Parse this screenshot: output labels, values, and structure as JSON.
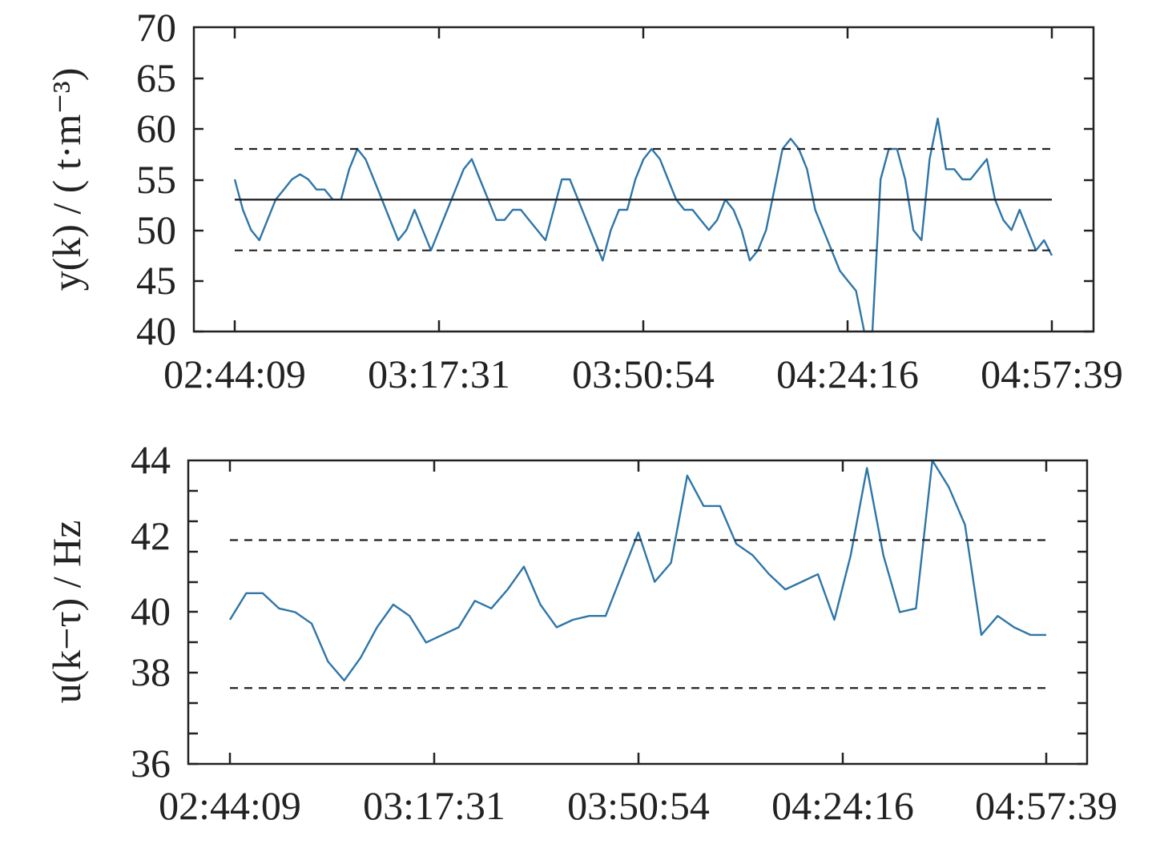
{
  "colors": {
    "series": "#2e75a8",
    "axis": "#222222"
  },
  "chart_data": [
    {
      "type": "line",
      "title": "",
      "xlabel": "",
      "ylabel": "y(k) / ( t·m⁻³)",
      "ylim": [
        40,
        70
      ],
      "y_ticks": [
        "40",
        "45",
        "50",
        "55",
        "60",
        "65",
        "70"
      ],
      "x_ticks": [
        "02:44:09",
        "03:17:31",
        "03:50:54",
        "04:24:16",
        "04:57:39"
      ],
      "xlim": [
        "02:44:09",
        "04:57:39"
      ],
      "grid": false,
      "reference_lines": [
        {
          "style": "solid",
          "y": 53
        },
        {
          "style": "dashed",
          "y": 58
        },
        {
          "style": "dashed",
          "y": 48
        }
      ],
      "series": [
        {
          "x": [
            "02:44:09",
            "02:45:29",
            "02:46:49",
            "02:48:10",
            "02:49:30",
            "02:50:50",
            "02:52:10",
            "02:53:30",
            "02:54:50",
            "02:56:10",
            "02:57:31",
            "02:58:51",
            "03:00:11",
            "03:01:31",
            "03:02:51",
            "03:04:11",
            "03:05:31",
            "03:06:52",
            "03:08:12",
            "03:09:32",
            "03:10:52",
            "03:12:12",
            "03:13:32",
            "03:14:52",
            "03:16:13",
            "03:17:33",
            "03:18:53",
            "03:20:13",
            "03:21:33",
            "03:22:53",
            "03:24:13",
            "03:25:34",
            "03:26:54",
            "03:28:14",
            "03:29:34",
            "03:30:54",
            "03:32:14",
            "03:33:34",
            "03:34:55",
            "03:36:15",
            "03:37:35",
            "03:38:55",
            "03:40:15",
            "03:41:35",
            "03:42:55",
            "03:44:16",
            "03:45:36",
            "03:46:56",
            "03:48:16",
            "03:49:36",
            "03:50:56",
            "03:52:16",
            "03:53:37",
            "03:54:57",
            "03:56:17",
            "03:57:37",
            "03:58:57",
            "04:00:17",
            "04:01:37",
            "04:02:58",
            "04:04:18",
            "04:05:38",
            "04:06:58",
            "04:08:18",
            "04:09:38",
            "04:10:58",
            "04:12:19",
            "04:13:39",
            "04:14:59",
            "04:16:19",
            "04:17:39",
            "04:18:59",
            "04:20:19",
            "04:21:40",
            "04:23:00",
            "04:24:20",
            "04:25:40",
            "04:27:00",
            "04:28:20",
            "04:29:40",
            "04:31:01",
            "04:32:21",
            "04:33:41",
            "04:35:01",
            "04:36:21",
            "04:37:41",
            "04:39:01",
            "04:40:22",
            "04:41:42",
            "04:43:02",
            "04:44:22",
            "04:45:42",
            "04:47:02",
            "04:48:22",
            "04:49:43",
            "04:51:03",
            "04:52:23",
            "04:53:43",
            "04:55:03",
            "04:56:23",
            "04:57:39"
          ],
          "y": [
            55,
            52,
            50,
            49,
            51,
            53,
            54,
            55,
            55.5,
            55,
            54,
            54,
            53,
            53,
            56,
            58,
            57,
            55,
            53,
            51,
            49,
            50,
            52,
            50,
            48,
            50,
            52,
            54,
            56,
            57,
            55,
            53,
            51,
            51,
            52,
            52,
            51,
            50,
            49,
            52,
            55,
            55,
            53,
            51,
            49,
            47,
            50,
            52,
            52,
            55,
            57,
            58,
            57,
            55,
            53,
            52,
            52,
            51,
            50,
            51,
            53,
            52,
            50,
            47,
            48,
            50,
            54,
            58,
            59,
            58,
            56,
            52,
            50,
            48,
            46,
            45,
            44,
            40,
            40,
            55,
            58,
            58,
            55,
            50,
            49,
            57,
            61,
            56,
            56,
            55,
            55,
            56,
            57,
            53,
            51,
            50,
            52,
            50,
            48,
            49,
            47.5
          ]
        }
      ]
    },
    {
      "type": "line",
      "title": "",
      "xlabel": "",
      "ylabel": "u(k−τ) / Hz",
      "ylim": [
        36,
        44
      ],
      "y_ticks": [
        "36",
        "38",
        "40",
        "42",
        "44"
      ],
      "x_ticks": [
        "02:44:09",
        "03:17:31",
        "03:50:54",
        "04:24:16",
        "04:57:39"
      ],
      "xlim": [
        "02:44:09",
        "04:57:39"
      ],
      "grid": false,
      "reference_lines": [
        {
          "style": "dashed",
          "y": 41.9
        },
        {
          "style": "dashed",
          "y": 38
        }
      ],
      "series": [
        {
          "x": [
            "02:44:09",
            "02:46:49",
            "02:49:30",
            "02:52:10",
            "02:54:50",
            "02:57:31",
            "03:00:11",
            "03:02:51",
            "03:05:31",
            "03:08:12",
            "03:10:52",
            "03:13:32",
            "03:16:13",
            "03:18:53",
            "03:21:33",
            "03:24:13",
            "03:26:54",
            "03:29:34",
            "03:32:14",
            "03:34:55",
            "03:37:35",
            "03:40:15",
            "03:42:55",
            "03:45:36",
            "03:48:16",
            "03:50:56",
            "03:53:37",
            "03:56:17",
            "03:58:57",
            "04:01:37",
            "04:04:18",
            "04:06:58",
            "04:09:38",
            "04:12:19",
            "04:14:59",
            "04:17:39",
            "04:20:19",
            "04:23:00",
            "04:25:40",
            "04:28:20",
            "04:31:01",
            "04:33:41",
            "04:36:21",
            "04:39:01",
            "04:41:42",
            "04:44:22",
            "04:47:02",
            "04:49:43",
            "04:52:23",
            "04:55:03",
            "04:57:39"
          ],
          "y": [
            39.8,
            40.5,
            40.5,
            40.1,
            40,
            39.7,
            38.7,
            38.2,
            38.8,
            39.6,
            40.2,
            39.9,
            39.2,
            39.4,
            39.6,
            40.3,
            40.1,
            40.6,
            41.2,
            40.2,
            39.6,
            39.8,
            39.9,
            39.9,
            41,
            42.1,
            40.8,
            41.3,
            43.6,
            42.8,
            42.8,
            41.8,
            41.5,
            41,
            40.6,
            40.8,
            41,
            39.8,
            41.5,
            43.8,
            41.5,
            40,
            40.1,
            44,
            43.3,
            42.3,
            39.4,
            39.9,
            39.6,
            39.4,
            39.4
          ]
        }
      ]
    }
  ]
}
